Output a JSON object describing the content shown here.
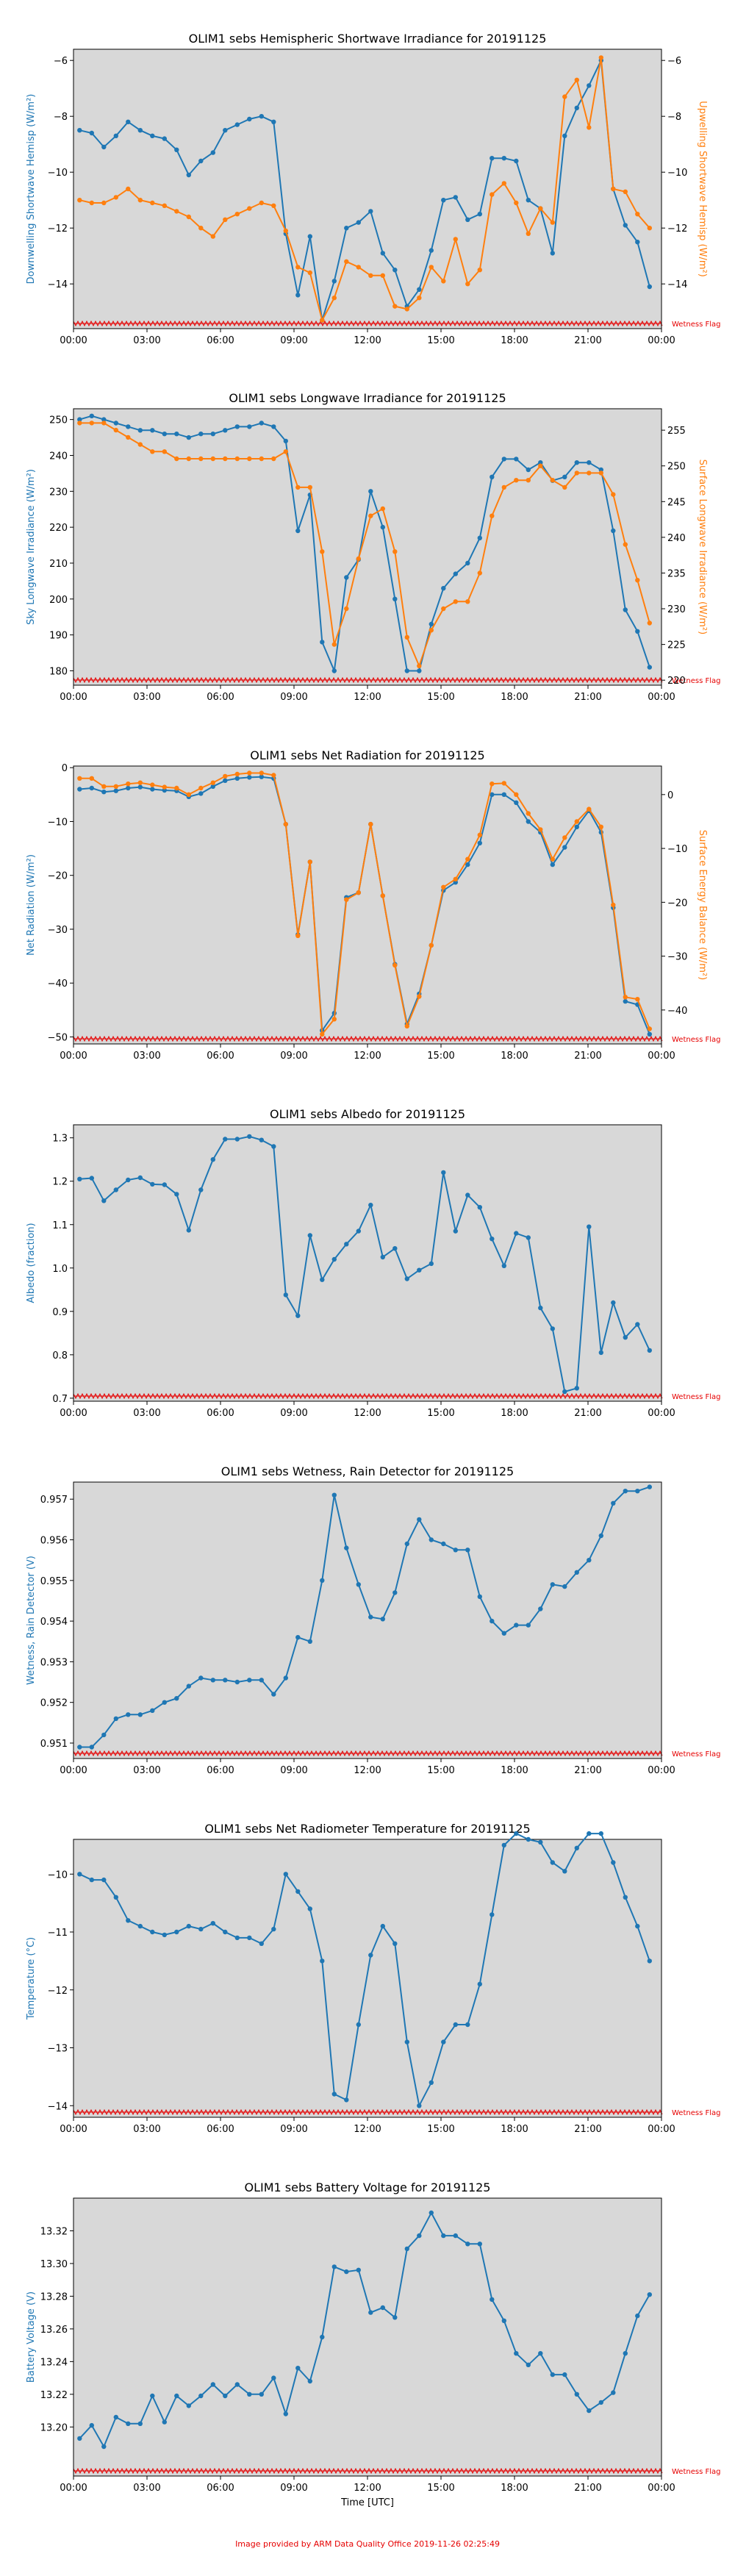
{
  "footer": "Image provided by ARM Data Quality Office 2019-11-26 02:25:49",
  "x_ticks": [
    "00:00",
    "03:00",
    "06:00",
    "09:00",
    "12:00",
    "15:00",
    "18:00",
    "21:00",
    "00:00"
  ],
  "x_label": "Time [UTC]",
  "flag_label": "Wetness Flag",
  "colors": {
    "blue": "#1f77b4",
    "orange": "#ff7f0e",
    "panel_bg": "#d8d8d8",
    "flag": "#e60000"
  },
  "chart_data": [
    {
      "type": "line",
      "title": "OLIM1 sebs Hemispheric Shortwave Irradiance for 20191125",
      "ylabel": "Downwelling Shortwave Hemisp (W/m²)",
      "ylim": [
        -15.6,
        -5.6
      ],
      "yticks": [
        -14,
        -12,
        -10,
        -8,
        -6
      ],
      "y2label": "Upwelling Shortwave Hemisp (W/m²)",
      "y2lim": [
        -15.6,
        -5.6
      ],
      "y2ticks": [
        -14,
        -12,
        -10,
        -8,
        -6
      ],
      "series": [
        {
          "axis": "left",
          "color": "#1f77b4",
          "values": [
            -8.5,
            -8.6,
            -9.1,
            -8.7,
            -8.2,
            -8.5,
            -8.7,
            -8.8,
            -9.2,
            -10.1,
            -9.6,
            -9.3,
            -8.5,
            -8.3,
            -8.1,
            -8.0,
            -8.2,
            -12.2,
            -14.4,
            -12.3,
            -15.3,
            -13.9,
            -12.0,
            -11.8,
            -11.4,
            -12.9,
            -13.5,
            -14.8,
            -14.2,
            -12.8,
            -11.0,
            -10.9,
            -11.7,
            -11.5,
            -9.5,
            -9.5,
            -9.6,
            -11.0,
            -11.3,
            -12.9,
            -8.7,
            -7.7,
            -6.9,
            -6.0,
            -10.6,
            -11.9,
            -12.5,
            -14.1
          ]
        },
        {
          "axis": "right",
          "color": "#ff7f0e",
          "values": [
            -11.0,
            -11.1,
            -11.1,
            -10.9,
            -10.6,
            -11.0,
            -11.1,
            -11.2,
            -11.4,
            -11.6,
            -12.0,
            -12.3,
            -11.7,
            -11.5,
            -11.3,
            -11.1,
            -11.2,
            -12.1,
            -13.4,
            -13.6,
            -15.3,
            -14.5,
            -13.2,
            -13.4,
            -13.7,
            -13.7,
            -14.8,
            -14.9,
            -14.5,
            -13.4,
            -13.9,
            -12.4,
            -14.0,
            -13.5,
            -10.8,
            -10.4,
            -11.1,
            -12.2,
            -11.3,
            -11.8,
            -7.3,
            -6.7,
            -8.4,
            -5.9,
            -10.6,
            -10.7,
            -11.5,
            -12.0
          ]
        }
      ]
    },
    {
      "type": "line",
      "title": "OLIM1 sebs Longwave Irradiance for 20191125",
      "ylabel": "Sky Longwave Irradiance (W/m²)",
      "ylim": [
        176,
        253
      ],
      "yticks": [
        180,
        190,
        200,
        210,
        220,
        230,
        240,
        250
      ],
      "y2label": "Surface Longwave Irradiance (W/m²)",
      "y2lim": [
        219.3,
        258
      ],
      "y2ticks": [
        220,
        225,
        230,
        235,
        240,
        245,
        250,
        255
      ],
      "series": [
        {
          "axis": "left",
          "color": "#1f77b4",
          "values": [
            250,
            251,
            250,
            249,
            248,
            247,
            247,
            246,
            246,
            245,
            246,
            246,
            247,
            248,
            248,
            249,
            248,
            244,
            219,
            229,
            188,
            180,
            206,
            211,
            230,
            220,
            200,
            180,
            180,
            193,
            203,
            207,
            210,
            217,
            234,
            239,
            239,
            236,
            238,
            233,
            234,
            238,
            238,
            236,
            219,
            197,
            191,
            181
          ]
        },
        {
          "axis": "right",
          "color": "#ff7f0e",
          "values": [
            256,
            256,
            256,
            255,
            254,
            253,
            252,
            252,
            251,
            251,
            251,
            251,
            251,
            251,
            251,
            251,
            251,
            252,
            247,
            247,
            238,
            225,
            230,
            237,
            243,
            244,
            238,
            226,
            222,
            227,
            230,
            231,
            231,
            235,
            243,
            247,
            248,
            248,
            250,
            248,
            247,
            249,
            249,
            249,
            246,
            239,
            234,
            228
          ]
        }
      ]
    },
    {
      "type": "line",
      "title": "OLIM1 sebs Net Radiation for 20191125",
      "ylabel": "Net Radiation (W/m²)",
      "ylim": [
        -51.3,
        0.3
      ],
      "yticks": [
        -50,
        -40,
        -30,
        -20,
        -10,
        0
      ],
      "y2label": "Surface Energy Balance (W/m²)",
      "y2lim": [
        -46.3,
        5.3
      ],
      "y2ticks": [
        -40,
        -30,
        -20,
        -10,
        0
      ],
      "series": [
        {
          "axis": "left",
          "color": "#1f77b4",
          "values": [
            -4.0,
            -3.8,
            -4.5,
            -4.3,
            -3.8,
            -3.6,
            -4.0,
            -4.2,
            -4.3,
            -5.4,
            -4.8,
            -3.5,
            -2.4,
            -2.0,
            -1.8,
            -1.7,
            -2.0,
            -10.5,
            -31.0,
            -17.5,
            -48.8,
            -45.6,
            -24.1,
            -23.2,
            -10.5,
            -23.8,
            -36.5,
            -47.6,
            -42.0,
            -33.0,
            -22.8,
            -21.3,
            -18.0,
            -14.0,
            -5.0,
            -5.0,
            -6.5,
            -10.0,
            -12.0,
            -18.0,
            -14.8,
            -11.0,
            -8.0,
            -12.0,
            -26.0,
            -43.4,
            -44.0,
            -49.5
          ]
        },
        {
          "axis": "right",
          "color": "#ff7f0e",
          "values": [
            3.0,
            3.0,
            1.5,
            1.5,
            2.0,
            2.2,
            1.8,
            1.4,
            1.2,
            0.0,
            1.2,
            2.2,
            3.4,
            3.8,
            4.0,
            4.0,
            3.6,
            -5.5,
            -26.2,
            -12.5,
            -44.5,
            -41.7,
            -19.5,
            -18.2,
            -5.5,
            -18.8,
            -31.7,
            -43.0,
            -37.5,
            -28.0,
            -17.2,
            -15.7,
            -12.0,
            -7.5,
            2.0,
            2.1,
            0.0,
            -3.5,
            -6.5,
            -12.0,
            -8.0,
            -5.0,
            -2.7,
            -6.0,
            -20.5,
            -37.6,
            -38.0,
            -43.5
          ]
        }
      ]
    },
    {
      "type": "line",
      "title": "OLIM1 sebs Albedo for 20191125",
      "ylabel": "Albedo (fraction)",
      "ylim": [
        0.693,
        1.33
      ],
      "yticks": [
        0.7,
        0.8,
        0.9,
        1.0,
        1.1,
        1.2,
        1.3
      ],
      "series": [
        {
          "axis": "left",
          "color": "#1f77b4",
          "values": [
            1.205,
            1.207,
            1.155,
            1.18,
            1.203,
            1.208,
            1.193,
            1.192,
            1.17,
            1.087,
            1.18,
            1.25,
            1.297,
            1.297,
            1.303,
            1.295,
            1.28,
            0.938,
            0.89,
            1.075,
            0.973,
            1.02,
            1.055,
            1.085,
            1.145,
            1.025,
            1.045,
            0.975,
            0.995,
            1.01,
            1.22,
            1.085,
            1.168,
            1.14,
            1.067,
            1.005,
            1.08,
            1.07,
            0.908,
            0.86,
            0.715,
            0.723,
            1.095,
            0.805,
            0.92,
            0.84,
            0.87,
            0.81
          ]
        }
      ]
    },
    {
      "type": "line",
      "title": "OLIM1 sebs Wetness, Rain Detector for 20191125",
      "ylabel": "Wetness, Rain Detector (V)",
      "ylim": [
        0.95062,
        0.95742
      ],
      "yticks": [
        0.951,
        0.952,
        0.953,
        0.954,
        0.955,
        0.956,
        0.957
      ],
      "series": [
        {
          "axis": "left",
          "color": "#1f77b4",
          "values": [
            0.9509,
            0.9509,
            0.9512,
            0.9516,
            0.9517,
            0.9517,
            0.9518,
            0.952,
            0.9521,
            0.9524,
            0.9526,
            0.95255,
            0.95255,
            0.9525,
            0.95255,
            0.95255,
            0.9522,
            0.9526,
            0.9536,
            0.9535,
            0.955,
            0.9571,
            0.9558,
            0.9549,
            0.9541,
            0.95405,
            0.9547,
            0.9559,
            0.9565,
            0.956,
            0.9559,
            0.95575,
            0.95575,
            0.9546,
            0.954,
            0.9537,
            0.9539,
            0.9539,
            0.9543,
            0.9549,
            0.95485,
            0.9552,
            0.9555,
            0.9561,
            0.9569,
            0.9572,
            0.9572,
            0.9573
          ]
        }
      ]
    },
    {
      "type": "line",
      "title": "OLIM1 sebs Net Radiometer Temperature for 20191125",
      "ylabel": "Temperature (°C)",
      "ylim": [
        -14.2,
        -9.4
      ],
      "yticks": [
        -14,
        -13,
        -12,
        -11,
        -10
      ],
      "series": [
        {
          "axis": "left",
          "color": "#1f77b4",
          "values": [
            -10.0,
            -10.1,
            -10.1,
            -10.4,
            -10.8,
            -10.9,
            -11.0,
            -11.05,
            -11.0,
            -10.9,
            -10.95,
            -10.85,
            -11.0,
            -11.1,
            -11.1,
            -11.2,
            -10.95,
            -10.0,
            -10.3,
            -10.6,
            -11.5,
            -13.8,
            -13.9,
            -12.6,
            -11.4,
            -10.9,
            -11.2,
            -12.9,
            -14.0,
            -13.6,
            -12.9,
            -12.6,
            -12.6,
            -11.9,
            -10.7,
            -9.5,
            -9.3,
            -9.4,
            -9.45,
            -9.8,
            -9.95,
            -9.55,
            -9.3,
            -9.3,
            -9.8,
            -10.4,
            -10.9,
            -11.5
          ]
        }
      ]
    },
    {
      "type": "line",
      "title": "OLIM1 sebs Battery Voltage for 20191125",
      "ylabel": "Battery Voltage (V)",
      "ylim": [
        13.17,
        13.34
      ],
      "yticks": [
        13.2,
        13.22,
        13.24,
        13.26,
        13.28,
        13.3,
        13.32
      ],
      "series": [
        {
          "axis": "left",
          "color": "#1f77b4",
          "values": [
            13.193,
            13.201,
            13.188,
            13.206,
            13.202,
            13.202,
            13.219,
            13.203,
            13.219,
            13.213,
            13.219,
            13.226,
            13.219,
            13.226,
            13.22,
            13.22,
            13.23,
            13.208,
            13.236,
            13.228,
            13.255,
            13.298,
            13.295,
            13.296,
            13.27,
            13.273,
            13.267,
            13.309,
            13.317,
            13.331,
            13.317,
            13.317,
            13.312,
            13.312,
            13.278,
            13.265,
            13.245,
            13.238,
            13.245,
            13.232,
            13.232,
            13.22,
            13.21,
            13.215,
            13.221,
            13.245,
            13.268,
            13.281
          ]
        }
      ]
    }
  ]
}
